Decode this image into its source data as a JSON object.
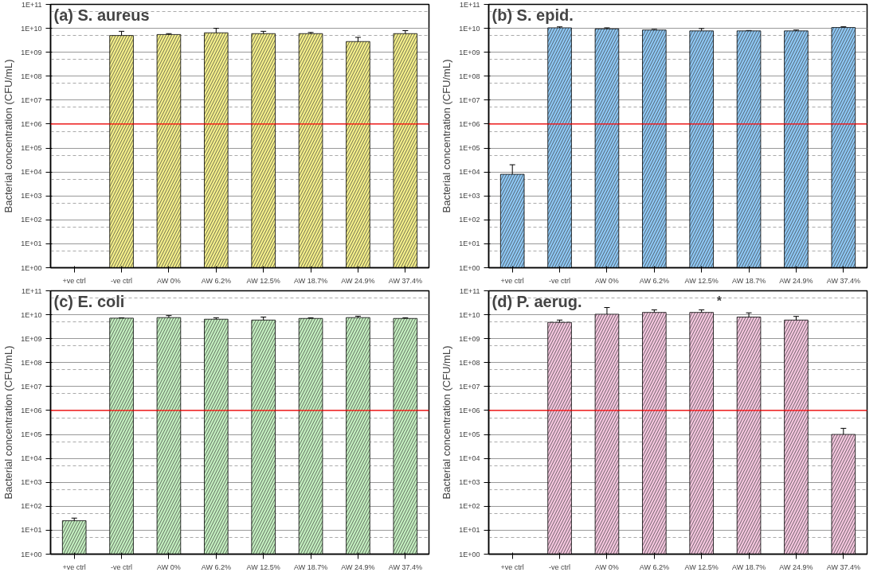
{
  "chart_data": [
    {
      "type": "bar",
      "title": "(a) S. aureus",
      "ylabel": "Bacterial concentration (CFU/mL)",
      "categories": [
        "+ve ctrl",
        "-ve ctrl",
        "AW 0%",
        "AW 6.2%",
        "AW 12.5%",
        "AW 18.7%",
        "AW 24.9%",
        "AW 37.4%"
      ],
      "series": [
        {
          "color": "#f5f08a",
          "values": [
            null,
            5000000000.0,
            5500000000.0,
            6500000000.0,
            6000000000.0,
            6000000000.0,
            2800000000.0,
            6000000000.0
          ],
          "errors": [
            null,
            [
              3000000000.0,
              7500000000.0
            ],
            [
              5000000000.0,
              6000000000.0
            ],
            [
              2500000000.0,
              10000000000.0
            ],
            [
              4500000000.0,
              7500000000.0
            ],
            [
              5300000000.0,
              6700000000.0
            ],
            [
              1300000000.0,
              4200000000.0
            ],
            [
              4000000000.0,
              8000000000.0
            ]
          ]
        }
      ],
      "log": true,
      "ylim": [
        1,
        100000000000.0
      ],
      "yticks": [
        {
          "value": 1,
          "label": "1E+00"
        },
        {
          "value": 10,
          "label": "1E+01"
        },
        {
          "value": 100,
          "label": "1E+02"
        },
        {
          "value": 1000,
          "label": "1E+03"
        },
        {
          "value": 10000,
          "label": "1E+04"
        },
        {
          "value": 100000,
          "label": "1E+05"
        },
        {
          "value": 1000000,
          "label": "1E+06"
        },
        {
          "value": 10000000,
          "label": "1E+07"
        },
        {
          "value": 100000000,
          "label": "1E+08"
        },
        {
          "value": 1000000000,
          "label": "1E+09"
        },
        {
          "value": 10000000000,
          "label": "1E+10"
        },
        {
          "value": 100000000000,
          "label": "1E+11"
        }
      ],
      "grid": "y",
      "ref_lines": [
        {
          "axis": "y",
          "value": 1000000,
          "color": "#ff0000"
        }
      ]
    },
    {
      "type": "bar",
      "title": "(b) S. epid.",
      "ylabel": "Bacterial concentration (CFU/mL)",
      "categories": [
        "+ve ctrl",
        "-ve ctrl",
        "AW 0%",
        "AW 6.2%",
        "AW 12.5%",
        "AW 18.7%",
        "AW 24.9%",
        "AW 37.4%"
      ],
      "series": [
        {
          "color": "#8ec8f5",
          "values": [
            8000.0,
            10500000000.0,
            9500000000.0,
            8500000000.0,
            7800000000.0,
            7800000000.0,
            7800000000.0,
            10800000000.0
          ],
          "errors": [
            [
              1,
              20000.0
            ],
            [
              9500000000.0,
              11500000000.0
            ],
            [
              8500000000.0,
              10500000000.0
            ],
            [
              8000000000.0,
              9000000000.0
            ],
            [
              5800000000.0,
              9800000000.0
            ],
            [
              7500000000.0,
              8100000000.0
            ],
            [
              7000000000.0,
              8500000000.0
            ],
            [
              10000000000.0,
              11600000000.0
            ]
          ]
        }
      ],
      "log": true,
      "ylim": [
        1,
        100000000000.0
      ],
      "yticks": [
        {
          "value": 1,
          "label": "1E+00"
        },
        {
          "value": 10,
          "label": "1E+01"
        },
        {
          "value": 100,
          "label": "1E+02"
        },
        {
          "value": 1000,
          "label": "1E+03"
        },
        {
          "value": 10000,
          "label": "1E+04"
        },
        {
          "value": 100000,
          "label": "1E+05"
        },
        {
          "value": 1000000,
          "label": "1E+06"
        },
        {
          "value": 10000000,
          "label": "1E+07"
        },
        {
          "value": 100000000,
          "label": "1E+08"
        },
        {
          "value": 1000000000,
          "label": "1E+09"
        },
        {
          "value": 10000000000,
          "label": "1E+10"
        },
        {
          "value": 100000000000,
          "label": "1E+11"
        }
      ],
      "grid": "y",
      "ref_lines": [
        {
          "axis": "y",
          "value": 1000000,
          "color": "#ff0000"
        }
      ]
    },
    {
      "type": "bar",
      "title": "(c) E. coli",
      "ylabel": "Bacterial concentration (CFU/mL)",
      "categories": [
        "+ve ctrl",
        "-ve ctrl",
        "AW 0%",
        "AW 6.2%",
        "AW 12.5%",
        "AW 18.7%",
        "AW 24.9%",
        "AW 37.4%"
      ],
      "series": [
        {
          "color": "#c4f0c0",
          "values": [
            25,
            7200000000.0,
            7600000000.0,
            6500000000.0,
            6000000000.0,
            7000000000.0,
            7600000000.0,
            7000000000.0
          ],
          "errors": [
            [
              18,
              32
            ],
            [
              7000000000.0,
              7400000000.0
            ],
            [
              6000000000.0,
              9200000000.0
            ],
            [
              5300000000.0,
              7500000000.0
            ],
            [
              4000000000.0,
              8000000000.0
            ],
            [
              6500000000.0,
              7500000000.0
            ],
            [
              6500000000.0,
              8700000000.0
            ],
            [
              6300000000.0,
              7500000000.0
            ]
          ]
        }
      ],
      "log": true,
      "ylim": [
        1,
        100000000000.0
      ],
      "yticks": [
        {
          "value": 1,
          "label": "1E+00"
        },
        {
          "value": 10,
          "label": "1E+01"
        },
        {
          "value": 100,
          "label": "1E+02"
        },
        {
          "value": 1000,
          "label": "1E+03"
        },
        {
          "value": 10000,
          "label": "1E+04"
        },
        {
          "value": 100000,
          "label": "1E+05"
        },
        {
          "value": 1000000,
          "label": "1E+06"
        },
        {
          "value": 10000000,
          "label": "1E+07"
        },
        {
          "value": 100000000,
          "label": "1E+08"
        },
        {
          "value": 1000000000,
          "label": "1E+09"
        },
        {
          "value": 10000000000,
          "label": "1E+10"
        },
        {
          "value": 100000000000,
          "label": "1E+11"
        }
      ],
      "grid": "y",
      "ref_lines": [
        {
          "axis": "y",
          "value": 1000000,
          "color": "#ff0000"
        }
      ]
    },
    {
      "type": "bar",
      "title": "(d) P. aerug.",
      "ylabel": "Bacterial concentration (CFU/mL)",
      "categories": [
        "+ve ctrl",
        "-ve ctrl",
        "AW 0%",
        "AW 6.2%",
        "AW 12.5%",
        "AW 18.7%",
        "AW 24.9%",
        "AW 37.4%"
      ],
      "series": [
        {
          "color": "#f5c6df",
          "values": [
            null,
            4800000000.0,
            10500000000.0,
            12500000000.0,
            12500000000.0,
            8000000000.0,
            6000000000.0,
            100000.0
          ],
          "errors": [
            null,
            [
              3600000000.0,
              6000000000.0
            ],
            [
              700000000.0,
              20000000000.0
            ],
            [
              9000000000.0,
              16000000000.0
            ],
            [
              9500000000.0,
              16000000000.0
            ],
            [
              4000000000.0,
              12000000000.0
            ],
            [
              4000000000.0,
              8500000000.0
            ],
            [
              30000.0,
              180000.0
            ]
          ]
        }
      ],
      "log": true,
      "ylim": [
        1,
        100000000000.0
      ],
      "yticks": [
        {
          "value": 1,
          "label": "1E+00"
        },
        {
          "value": 10,
          "label": "1E+01"
        },
        {
          "value": 100,
          "label": "1E+02"
        },
        {
          "value": 1000,
          "label": "1E+03"
        },
        {
          "value": 10000,
          "label": "1E+04"
        },
        {
          "value": 100000,
          "label": "1E+05"
        },
        {
          "value": 1000000,
          "label": "1E+06"
        },
        {
          "value": 10000000,
          "label": "1E+07"
        },
        {
          "value": 100000000,
          "label": "1E+08"
        },
        {
          "value": 1000000000,
          "label": "1E+09"
        },
        {
          "value": 10000000000,
          "label": "1E+10"
        },
        {
          "value": 100000000000,
          "label": "1E+11"
        }
      ],
      "grid": "y",
      "ref_lines": [
        {
          "axis": "y",
          "value": 1000000,
          "color": "#ff0000"
        }
      ],
      "annotations": [
        "*"
      ]
    }
  ]
}
